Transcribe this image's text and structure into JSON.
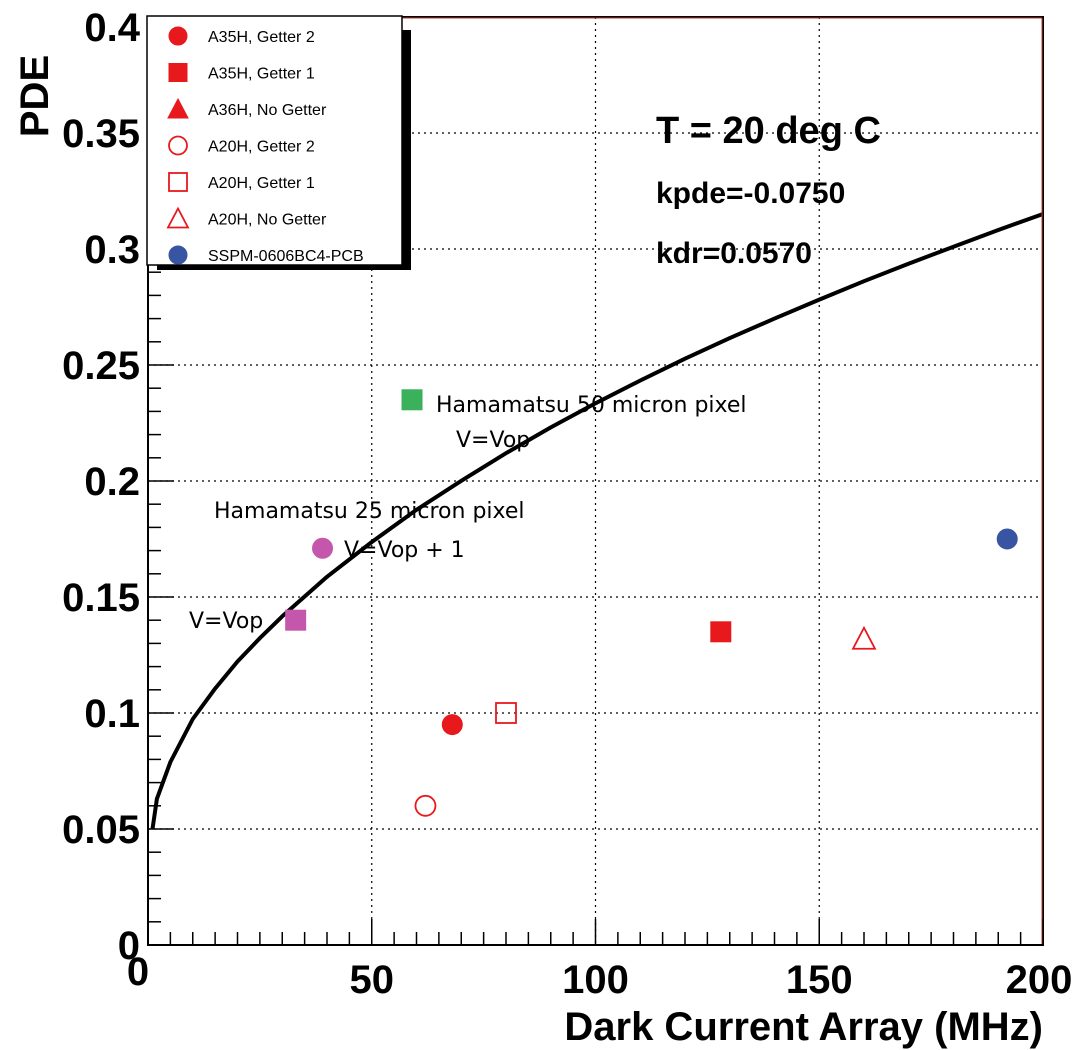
{
  "chart_data": {
    "type": "scatter",
    "title": "",
    "xlabel": "Dark Current Array (MHz)",
    "ylabel": "PDE",
    "xlim": [
      0,
      200
    ],
    "ylim": [
      0,
      0.4
    ],
    "x_ticks": [
      "0",
      "50",
      "100",
      "150",
      "200"
    ],
    "y_ticks": [
      "0",
      "0.05",
      "0.1",
      "0.15",
      "0.2",
      "0.25",
      "0.3",
      "0.35",
      "0.4"
    ],
    "grid": true,
    "legend_position": "top-left",
    "legend": [
      {
        "label": "A35H, Getter 2",
        "marker": "circle",
        "fill": true,
        "color": "#e8191d"
      },
      {
        "label": "A35H, Getter 1",
        "marker": "square",
        "fill": true,
        "color": "#e8191d"
      },
      {
        "label": "A36H, No Getter",
        "marker": "triangle",
        "fill": true,
        "color": "#e8191d"
      },
      {
        "label": "A20H, Getter 2",
        "marker": "circle",
        "fill": false,
        "color": "#e8191d"
      },
      {
        "label": "A20H, Getter 1",
        "marker": "square",
        "fill": false,
        "color": "#e8191d"
      },
      {
        "label": "A20H, No Getter",
        "marker": "triangle",
        "fill": false,
        "color": "#e8191d"
      },
      {
        "label": "SSPM-0606BC4-PCB",
        "marker": "circle",
        "fill": true,
        "color": "#3a54a4"
      }
    ],
    "points": [
      {
        "name": "A35H, Getter 2",
        "x": 68,
        "y": 0.095,
        "marker": "circle",
        "fill": true,
        "color": "#e8191d"
      },
      {
        "name": "A35H, Getter 1",
        "x": 128,
        "y": 0.135,
        "marker": "square",
        "fill": true,
        "color": "#e8191d"
      },
      {
        "name": "A20H, Getter 2",
        "x": 62,
        "y": 0.06,
        "marker": "circle",
        "fill": false,
        "color": "#e8191d"
      },
      {
        "name": "A20H, Getter 1",
        "x": 80,
        "y": 0.1,
        "marker": "square",
        "fill": false,
        "color": "#e8191d"
      },
      {
        "name": "A20H, No Getter",
        "x": 160,
        "y": 0.132,
        "marker": "triangle",
        "fill": false,
        "color": "#e8191d"
      },
      {
        "name": "SSPM-0606BC4-PCB",
        "x": 192,
        "y": 0.175,
        "marker": "circle",
        "fill": true,
        "color": "#3a54a4"
      },
      {
        "name": "Hamamatsu 50 micron pixel",
        "x": 59,
        "y": 0.235,
        "marker": "square",
        "fill": true,
        "color": "#3bb15c"
      },
      {
        "name": "Hamamatsu 25 micron pixel V=Vop + 1",
        "x": 39,
        "y": 0.171,
        "marker": "circle",
        "fill": true,
        "color": "#c457ac"
      },
      {
        "name": "Hamamatsu 25 micron pixel V=Vop",
        "x": 33,
        "y": 0.14,
        "marker": "square",
        "fill": true,
        "color": "#c457ac"
      }
    ],
    "curve": {
      "formula": "0.05 + 0.013*(x-1)^0.55",
      "x": [
        1,
        2,
        5,
        10,
        15,
        20,
        25,
        30,
        40,
        50,
        60,
        70,
        80,
        90,
        100,
        110,
        120,
        130,
        140,
        150,
        160,
        170,
        180,
        190,
        200
      ],
      "y": [
        0.05,
        0.063,
        0.0789,
        0.0974,
        0.1105,
        0.1222,
        0.1323,
        0.1417,
        0.1587,
        0.1737,
        0.1876,
        0.2001,
        0.212,
        0.2231,
        0.2335,
        0.2433,
        0.2527,
        0.2616,
        0.27,
        0.2782,
        0.2861,
        0.2937,
        0.301,
        0.3082,
        0.3151
      ]
    },
    "info_text": {
      "temperature": "T = 20 deg C",
      "kpde": "kpde=-0.0750",
      "kdr": "kdr=0.0570"
    },
    "annotations": {
      "h50_label": "Hamamatsu 50 micron pixel",
      "h50_voltage": "V=Vop",
      "h25_label": "Hamamatsu 25 micron pixel",
      "h25_voltage_plus": "V=Vop + 1",
      "h25_voltage": "V=Vop"
    }
  }
}
